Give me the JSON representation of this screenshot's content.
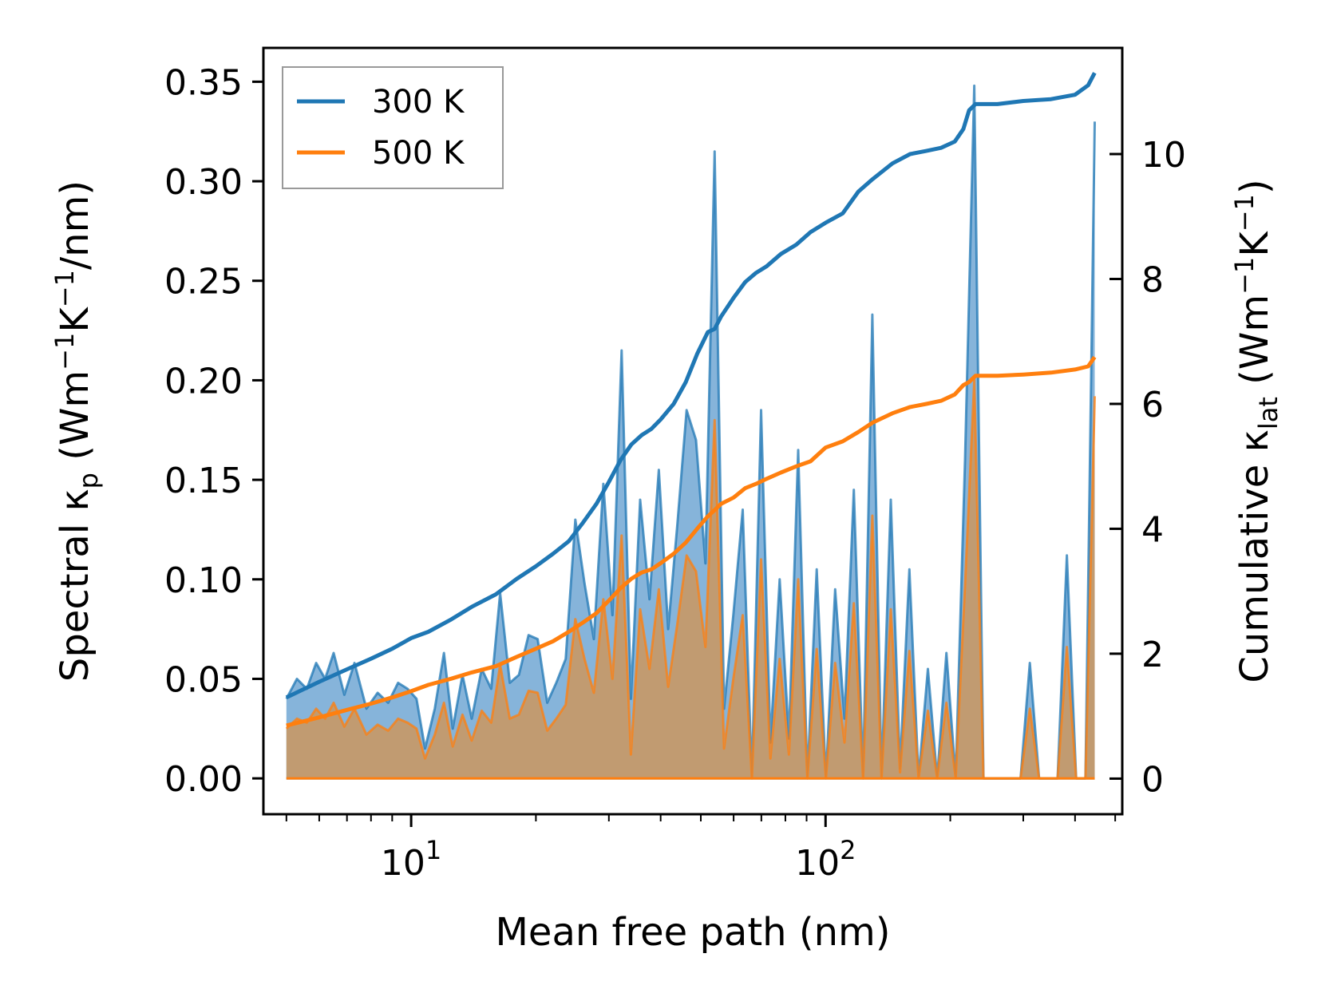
{
  "chart_data": {
    "type": "line",
    "xlabel": "Mean free path (nm)",
    "xscale": "log",
    "xlim": [
      4.4,
      520
    ],
    "xticks": [
      {
        "value": 10,
        "base": "10",
        "exp": "1"
      },
      {
        "value": 100,
        "base": "10",
        "exp": "2"
      }
    ],
    "y_left": {
      "label": {
        "pre": "Spectral κ",
        "sub": "p",
        "mid": " (Wm",
        "sup1": "−1",
        "mid2": "K",
        "sup2": "−1",
        "post": "/nm)"
      },
      "ylim": [
        -0.018,
        0.367
      ],
      "ticks": [
        0.0,
        0.05,
        0.1,
        0.15,
        0.2,
        0.25,
        0.3,
        0.35
      ],
      "tick_labels": [
        "0.00",
        "0.05",
        "0.10",
        "0.15",
        "0.20",
        "0.25",
        "0.30",
        "0.35"
      ]
    },
    "y_right": {
      "label": {
        "pre": "Cumulative κ",
        "sub": "lat",
        "mid": " (Wm",
        "sup1": "−1",
        "mid2": "K",
        "sup2": "−1",
        "post": ")"
      },
      "ylim": [
        -0.57,
        11.7
      ],
      "ticks": [
        0,
        2,
        4,
        6,
        8,
        10
      ],
      "tick_labels": [
        "0",
        "2",
        "4",
        "6",
        "8",
        "10"
      ]
    },
    "legend": {
      "position": "top-left",
      "entries": [
        "300 K",
        "500 K"
      ]
    },
    "colors": {
      "300 K": "#1f77b4",
      "500 K": "#ff7f0e",
      "fill_300": "#7fb0d8",
      "fill_500": "#c49a6c"
    },
    "spectral_300K": {
      "axis": "left",
      "x": [
        5.0,
        5.3,
        5.6,
        5.9,
        6.2,
        6.5,
        6.9,
        7.3,
        7.8,
        8.3,
        8.8,
        9.3,
        9.8,
        10.3,
        10.8,
        11.4,
        12.0,
        12.6,
        13.3,
        14.0,
        14.8,
        15.6,
        16.4,
        17.3,
        18.2,
        19.2,
        20.2,
        21.3,
        22.4,
        23.6,
        24.9,
        26.2,
        27.6,
        29.1,
        30.6,
        32.2,
        33.9,
        35.7,
        37.6,
        39.6,
        41.7,
        43.9,
        46.2,
        48.7,
        51.3,
        54.0,
        56.9,
        59.9,
        63.1,
        66.4,
        69.9,
        73.6,
        77.5,
        81.6,
        85.9,
        90.4,
        95.2,
        100.2,
        105.5,
        111.1,
        117.0,
        123.2,
        129.7,
        136.5,
        143.7,
        151.3,
        159.3,
        167.7,
        176.6,
        185.9,
        195.7,
        206.1,
        217.0,
        228.5,
        240.5,
        253.2,
        266.6,
        280.7,
        295.5,
        311.1,
        327.6,
        344.9,
        363.1,
        382.3,
        402.5,
        423.8,
        446.2
      ],
      "values": [
        0.04,
        0.05,
        0.045,
        0.058,
        0.05,
        0.063,
        0.042,
        0.058,
        0.035,
        0.043,
        0.038,
        0.048,
        0.045,
        0.04,
        0.015,
        0.035,
        0.063,
        0.025,
        0.052,
        0.03,
        0.055,
        0.045,
        0.093,
        0.048,
        0.052,
        0.072,
        0.07,
        0.038,
        0.048,
        0.06,
        0.13,
        0.098,
        0.07,
        0.148,
        0.082,
        0.215,
        0.04,
        0.14,
        0.09,
        0.155,
        0.075,
        0.128,
        0.185,
        0.17,
        0.108,
        0.315,
        0.035,
        0.082,
        0.135,
        0.0,
        0.185,
        0.018,
        0.1,
        0.02,
        0.165,
        0.0,
        0.105,
        0.0,
        0.095,
        0.03,
        0.145,
        0.0,
        0.233,
        0.0,
        0.14,
        0.005,
        0.105,
        0.0,
        0.055,
        0.0,
        0.063,
        0.0,
        0.16,
        0.348,
        0.0,
        0.0,
        0.0,
        0.0,
        0.0,
        0.058,
        0.0,
        0.0,
        0.0,
        0.112,
        0.0,
        0.0,
        0.33
      ]
    },
    "spectral_500K": {
      "axis": "left",
      "x": [
        5.0,
        5.3,
        5.6,
        5.9,
        6.2,
        6.5,
        6.9,
        7.3,
        7.8,
        8.3,
        8.8,
        9.3,
        9.8,
        10.3,
        10.8,
        11.4,
        12.0,
        12.6,
        13.3,
        14.0,
        14.8,
        15.6,
        16.4,
        17.3,
        18.2,
        19.2,
        20.2,
        21.3,
        22.4,
        23.6,
        24.9,
        26.2,
        27.6,
        29.1,
        30.6,
        32.2,
        33.9,
        35.7,
        37.6,
        39.6,
        41.7,
        43.9,
        46.2,
        48.7,
        51.3,
        54.0,
        56.9,
        59.9,
        63.1,
        66.4,
        69.9,
        73.6,
        77.5,
        81.6,
        85.9,
        90.4,
        95.2,
        100.2,
        105.5,
        111.1,
        117.0,
        123.2,
        129.7,
        136.5,
        143.7,
        151.3,
        159.3,
        167.7,
        176.6,
        185.9,
        195.7,
        206.1,
        217.0,
        228.5,
        240.5,
        253.2,
        266.6,
        280.7,
        295.5,
        311.1,
        327.6,
        344.9,
        363.1,
        382.3,
        402.5,
        423.8,
        446.2
      ],
      "values": [
        0.025,
        0.03,
        0.028,
        0.035,
        0.03,
        0.038,
        0.026,
        0.035,
        0.022,
        0.027,
        0.024,
        0.03,
        0.028,
        0.025,
        0.01,
        0.022,
        0.038,
        0.016,
        0.032,
        0.019,
        0.034,
        0.028,
        0.057,
        0.03,
        0.032,
        0.044,
        0.043,
        0.024,
        0.03,
        0.037,
        0.08,
        0.06,
        0.043,
        0.09,
        0.05,
        0.122,
        0.012,
        0.085,
        0.055,
        0.095,
        0.046,
        0.078,
        0.112,
        0.104,
        0.066,
        0.18,
        0.015,
        0.05,
        0.082,
        0.0,
        0.11,
        0.01,
        0.06,
        0.012,
        0.1,
        0.0,
        0.065,
        0.0,
        0.058,
        0.018,
        0.088,
        0.0,
        0.132,
        0.0,
        0.085,
        0.003,
        0.064,
        0.0,
        0.034,
        0.0,
        0.038,
        0.0,
        0.097,
        0.2,
        0.0,
        0.0,
        0.0,
        0.0,
        0.0,
        0.035,
        0.0,
        0.0,
        0.0,
        0.066,
        0.0,
        0.0,
        0.192
      ]
    },
    "cumulative_300K": {
      "axis": "right",
      "x": [
        5.0,
        6.0,
        7.0,
        8.0,
        9.0,
        10.0,
        11.0,
        12.5,
        14.0,
        16.0,
        18.0,
        20.0,
        22.0,
        24.0,
        26.0,
        28.0,
        30.0,
        32.0,
        34.0,
        36.0,
        38.0,
        40.0,
        43.0,
        46.0,
        49.0,
        52.0,
        54.0,
        56.0,
        60.0,
        64.0,
        68.0,
        72.0,
        78.0,
        85.0,
        92.0,
        100.0,
        110.0,
        120.0,
        130.0,
        145.0,
        160.0,
        175.0,
        190.0,
        205.0,
        215.0,
        222.0,
        230.0,
        260.0,
        300.0,
        350.0,
        400.0,
        430.0,
        446.0
      ],
      "values": [
        1.3,
        1.55,
        1.75,
        1.92,
        2.08,
        2.25,
        2.35,
        2.55,
        2.75,
        2.95,
        3.2,
        3.4,
        3.6,
        3.8,
        4.1,
        4.4,
        4.75,
        5.1,
        5.35,
        5.5,
        5.6,
        5.75,
        6.0,
        6.35,
        6.8,
        7.15,
        7.2,
        7.4,
        7.7,
        7.95,
        8.1,
        8.2,
        8.4,
        8.55,
        8.75,
        8.9,
        9.05,
        9.4,
        9.6,
        9.85,
        10.0,
        10.05,
        10.1,
        10.2,
        10.4,
        10.7,
        10.8,
        10.8,
        10.85,
        10.88,
        10.95,
        11.1,
        11.3
      ]
    },
    "cumulative_500K": {
      "axis": "right",
      "x": [
        5.0,
        6.0,
        7.0,
        8.0,
        9.0,
        10.0,
        11.0,
        12.5,
        14.0,
        16.0,
        18.0,
        20.0,
        22.0,
        24.0,
        26.0,
        28.0,
        30.0,
        32.0,
        34.0,
        36.0,
        38.0,
        40.0,
        43.0,
        46.0,
        49.0,
        52.0,
        54.0,
        56.0,
        60.0,
        64.0,
        68.0,
        72.0,
        78.0,
        85.0,
        92.0,
        100.0,
        110.0,
        120.0,
        130.0,
        145.0,
        160.0,
        175.0,
        190.0,
        205.0,
        215.0,
        222.0,
        230.0,
        260.0,
        300.0,
        350.0,
        400.0,
        430.0,
        446.0
      ],
      "values": [
        0.85,
        0.98,
        1.1,
        1.2,
        1.3,
        1.4,
        1.5,
        1.6,
        1.7,
        1.8,
        1.95,
        2.08,
        2.2,
        2.35,
        2.5,
        2.65,
        2.85,
        3.05,
        3.2,
        3.3,
        3.35,
        3.45,
        3.6,
        3.78,
        4.0,
        4.2,
        4.3,
        4.4,
        4.5,
        4.65,
        4.72,
        4.8,
        4.9,
        5.0,
        5.08,
        5.3,
        5.4,
        5.55,
        5.7,
        5.85,
        5.95,
        6.0,
        6.05,
        6.15,
        6.3,
        6.35,
        6.45,
        6.45,
        6.47,
        6.5,
        6.55,
        6.6,
        6.75
      ]
    }
  }
}
